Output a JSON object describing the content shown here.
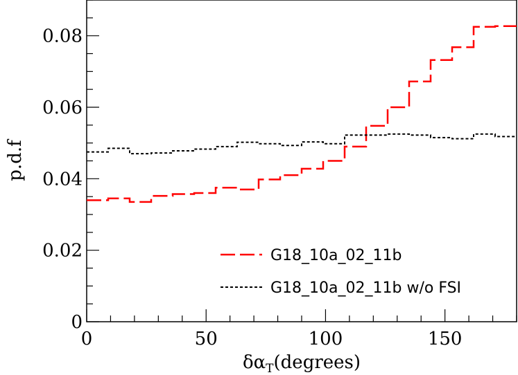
{
  "chart_data": {
    "type": "line",
    "xlabel_main": "δα",
    "xlabel_sub": "T",
    "xlabel_unit": "(degrees)",
    "ylabel": "p.d.f",
    "xlim": [
      0,
      180
    ],
    "ylim": [
      0,
      0.09
    ],
    "xticks": [
      "0",
      "50",
      "100",
      "150"
    ],
    "yticks": [
      "0",
      "0.02",
      "0.04",
      "0.06",
      "0.08"
    ],
    "grid": false,
    "legend_position": "bottom-right",
    "bin_edges": [
      0,
      9,
      18,
      27,
      36,
      45,
      54,
      63,
      72,
      81,
      90,
      99,
      108,
      117,
      126,
      135,
      144,
      153,
      162,
      171,
      180
    ],
    "series": [
      {
        "name": "G18_10a_02_11b",
        "color": "#ff0000",
        "style": "dashed",
        "values": [
          0.034,
          0.0345,
          0.0335,
          0.0352,
          0.0357,
          0.036,
          0.0375,
          0.037,
          0.0398,
          0.041,
          0.0428,
          0.045,
          0.049,
          0.0548,
          0.06,
          0.0672,
          0.0732,
          0.0768,
          0.0825,
          0.0827
        ]
      },
      {
        "name": "G18_10a_02_11b w/o FSI",
        "color": "#000000",
        "style": "dotted",
        "values": [
          0.0475,
          0.0485,
          0.047,
          0.0472,
          0.0478,
          0.0483,
          0.049,
          0.0502,
          0.0498,
          0.0493,
          0.0503,
          0.0498,
          0.0522,
          0.0522,
          0.0525,
          0.0522,
          0.0515,
          0.0512,
          0.0525,
          0.0518
        ]
      }
    ]
  }
}
